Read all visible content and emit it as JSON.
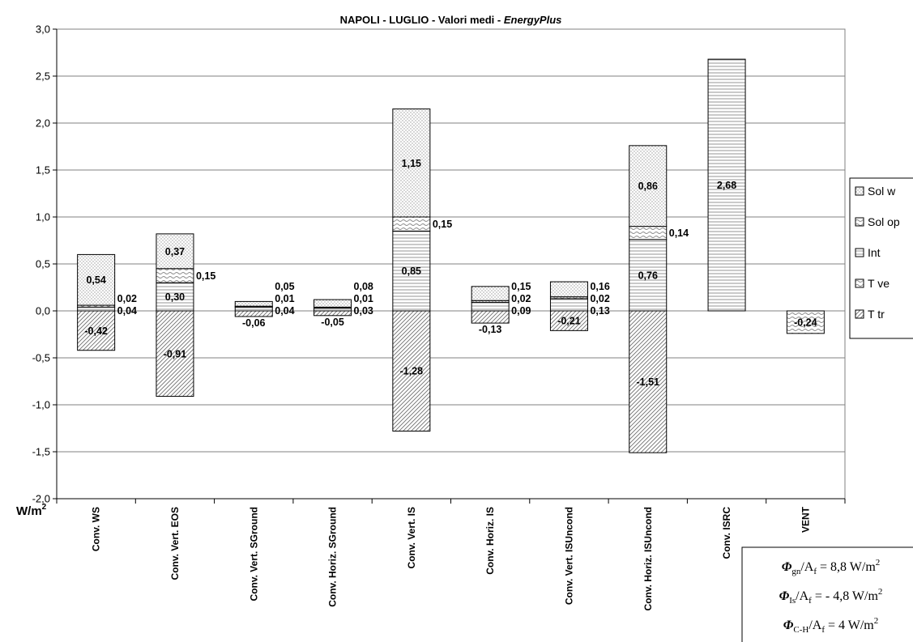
{
  "chart_data": {
    "type": "bar",
    "stacked": true,
    "title": "NAPOLI - LUGLIO - Valori medi - EnergyPlus",
    "title_plain": "NAPOLI - LUGLIO - Valori medi - ",
    "title_italic": "EnergyPlus",
    "ylabel": "W/m",
    "ylabel_sup": "2",
    "ylim": [
      -2.0,
      3.0
    ],
    "yticks": [
      "-2,0",
      "-1,5",
      "-1,0",
      "-0,5",
      "0,0",
      "0,5",
      "1,0",
      "1,5",
      "2,0",
      "2,5",
      "3,0"
    ],
    "categories": [
      "Conv. WS",
      "Conv. Vert. EOS",
      "Conv. Vert. SGround",
      "Conv. Horiz. SGround",
      "Conv. Vert. IS",
      "Conv. Horiz. IS",
      "Conv. Vert. ISUncond",
      "Conv. Horiz. ISUncond",
      "Conv. ISRC",
      "VENT"
    ],
    "series": [
      {
        "name": "T tr",
        "pattern": "diag",
        "values": [
          -0.42,
          -0.91,
          -0.06,
          -0.05,
          -1.28,
          -0.13,
          -0.21,
          -1.51,
          0,
          0
        ],
        "labels": [
          "-0,42",
          "-0,91",
          "-0,06",
          "-0,05",
          "-1,28",
          "-0,13",
          "-0,21",
          "-1,51",
          "",
          ""
        ]
      },
      {
        "name": "T ve",
        "pattern": "wave",
        "values": [
          0,
          0,
          0,
          0,
          0,
          0,
          0,
          0,
          0,
          -0.24
        ],
        "labels": [
          "",
          "",
          "",
          "",
          "",
          "",
          "",
          "",
          "",
          "-0,24"
        ]
      },
      {
        "name": "Int",
        "pattern": "hlines",
        "values": [
          0.04,
          0.3,
          0.04,
          0.03,
          0.85,
          0.09,
          0.13,
          0.76,
          2.68,
          0
        ],
        "labels": [
          "0,04",
          "0,30",
          "0,04",
          "0,03",
          "0,85",
          "0,09",
          "0,13",
          "0,76",
          "2,68",
          ""
        ]
      },
      {
        "name": "Sol op",
        "pattern": "wave",
        "values": [
          0.02,
          0.15,
          0.01,
          0.01,
          0.15,
          0.02,
          0.02,
          0.14,
          0,
          0
        ],
        "labels": [
          "0,02",
          "0,15",
          "0,01",
          "0,01",
          "0,15",
          "0,02",
          "0,02",
          "0,14",
          "",
          ""
        ]
      },
      {
        "name": "Sol w",
        "pattern": "dots",
        "values": [
          0.54,
          0.37,
          0.05,
          0.08,
          1.15,
          0.15,
          0.16,
          0.86,
          0,
          0
        ],
        "labels": [
          "0,54",
          "0,37",
          "0,05",
          "0,08",
          "1,15",
          "0,15",
          "0,16",
          "0,86",
          "",
          ""
        ]
      }
    ],
    "legend": {
      "position": "right",
      "entries": [
        {
          "name": "Sol w",
          "pattern": "dots"
        },
        {
          "name": "Sol op",
          "pattern": "wave"
        },
        {
          "name": "Int",
          "pattern": "hlines"
        },
        {
          "name": "T ve",
          "pattern": "wave"
        },
        {
          "name": "T tr",
          "pattern": "diag"
        }
      ]
    },
    "grid": true,
    "notes": [
      {
        "sym": "Φ",
        "sub": "gn",
        "mid": "/A",
        "sub2": "f",
        "text": " = 8,8 W/m",
        "sup": "2"
      },
      {
        "sym": "Φ",
        "sub": "Is",
        "mid": "/A",
        "sub2": "f",
        "text": " = - 4,8 W/m",
        "sup": "2"
      },
      {
        "sym": "Φ",
        "sub": "C-H",
        "mid": "/A",
        "sub2": "f",
        "text": " = 4 W/m",
        "sup": "2"
      }
    ]
  },
  "colors": {
    "axis": "#000000",
    "grid": "#808080",
    "background": "#ffffff"
  }
}
